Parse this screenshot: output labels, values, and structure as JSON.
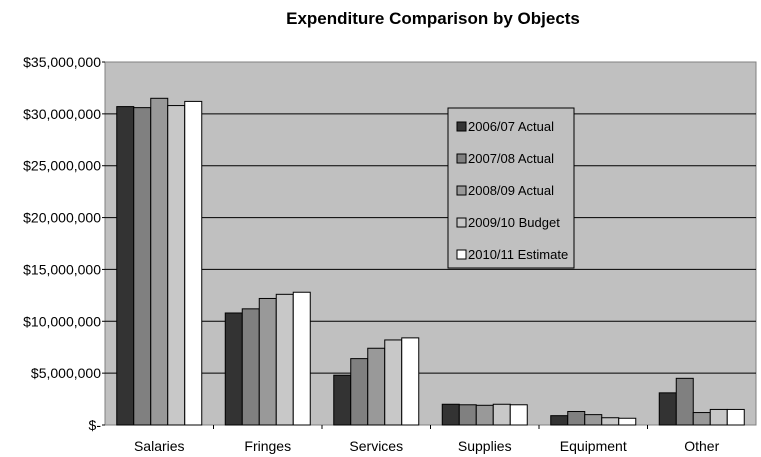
{
  "chart_data": {
    "type": "bar",
    "title": "Expenditure Comparison by Objects",
    "xlabel": "",
    "ylabel": "",
    "categories": [
      "Salaries",
      "Fringes",
      "Services",
      "Supplies",
      "Equipment",
      "Other"
    ],
    "ylim": [
      0,
      35000000
    ],
    "yticks": [
      {
        "value": 0,
        "label": "$-"
      },
      {
        "value": 5000000,
        "label": "$5,000,000"
      },
      {
        "value": 10000000,
        "label": "$10,000,000"
      },
      {
        "value": 15000000,
        "label": "$15,000,000"
      },
      {
        "value": 20000000,
        "label": "$20,000,000"
      },
      {
        "value": 25000000,
        "label": "$25,000,000"
      },
      {
        "value": 30000000,
        "label": "$30,000,000"
      },
      {
        "value": 35000000,
        "label": "$35,000,000"
      }
    ],
    "grid": true,
    "legend_position": "upper-right-inside",
    "plot_background": "#c0c0c0",
    "series": [
      {
        "name": "2006/07 Actual",
        "color": "#333333",
        "values": [
          30700000,
          10800000,
          4800000,
          2000000,
          900000,
          3100000
        ]
      },
      {
        "name": "2007/08 Actual",
        "color": "#808080",
        "values": [
          30600000,
          11200000,
          6400000,
          1950000,
          1300000,
          4500000
        ]
      },
      {
        "name": "2008/09 Actual",
        "color": "#999999",
        "values": [
          31500000,
          12200000,
          7400000,
          1900000,
          1000000,
          1200000
        ]
      },
      {
        "name": "2009/10 Budget",
        "color": "#c8c8c8",
        "values": [
          30800000,
          12600000,
          8200000,
          2000000,
          700000,
          1500000
        ]
      },
      {
        "name": "2010/11 Estimate",
        "color": "#ffffff",
        "values": [
          31200000,
          12800000,
          8400000,
          1950000,
          650000,
          1500000
        ]
      }
    ]
  }
}
